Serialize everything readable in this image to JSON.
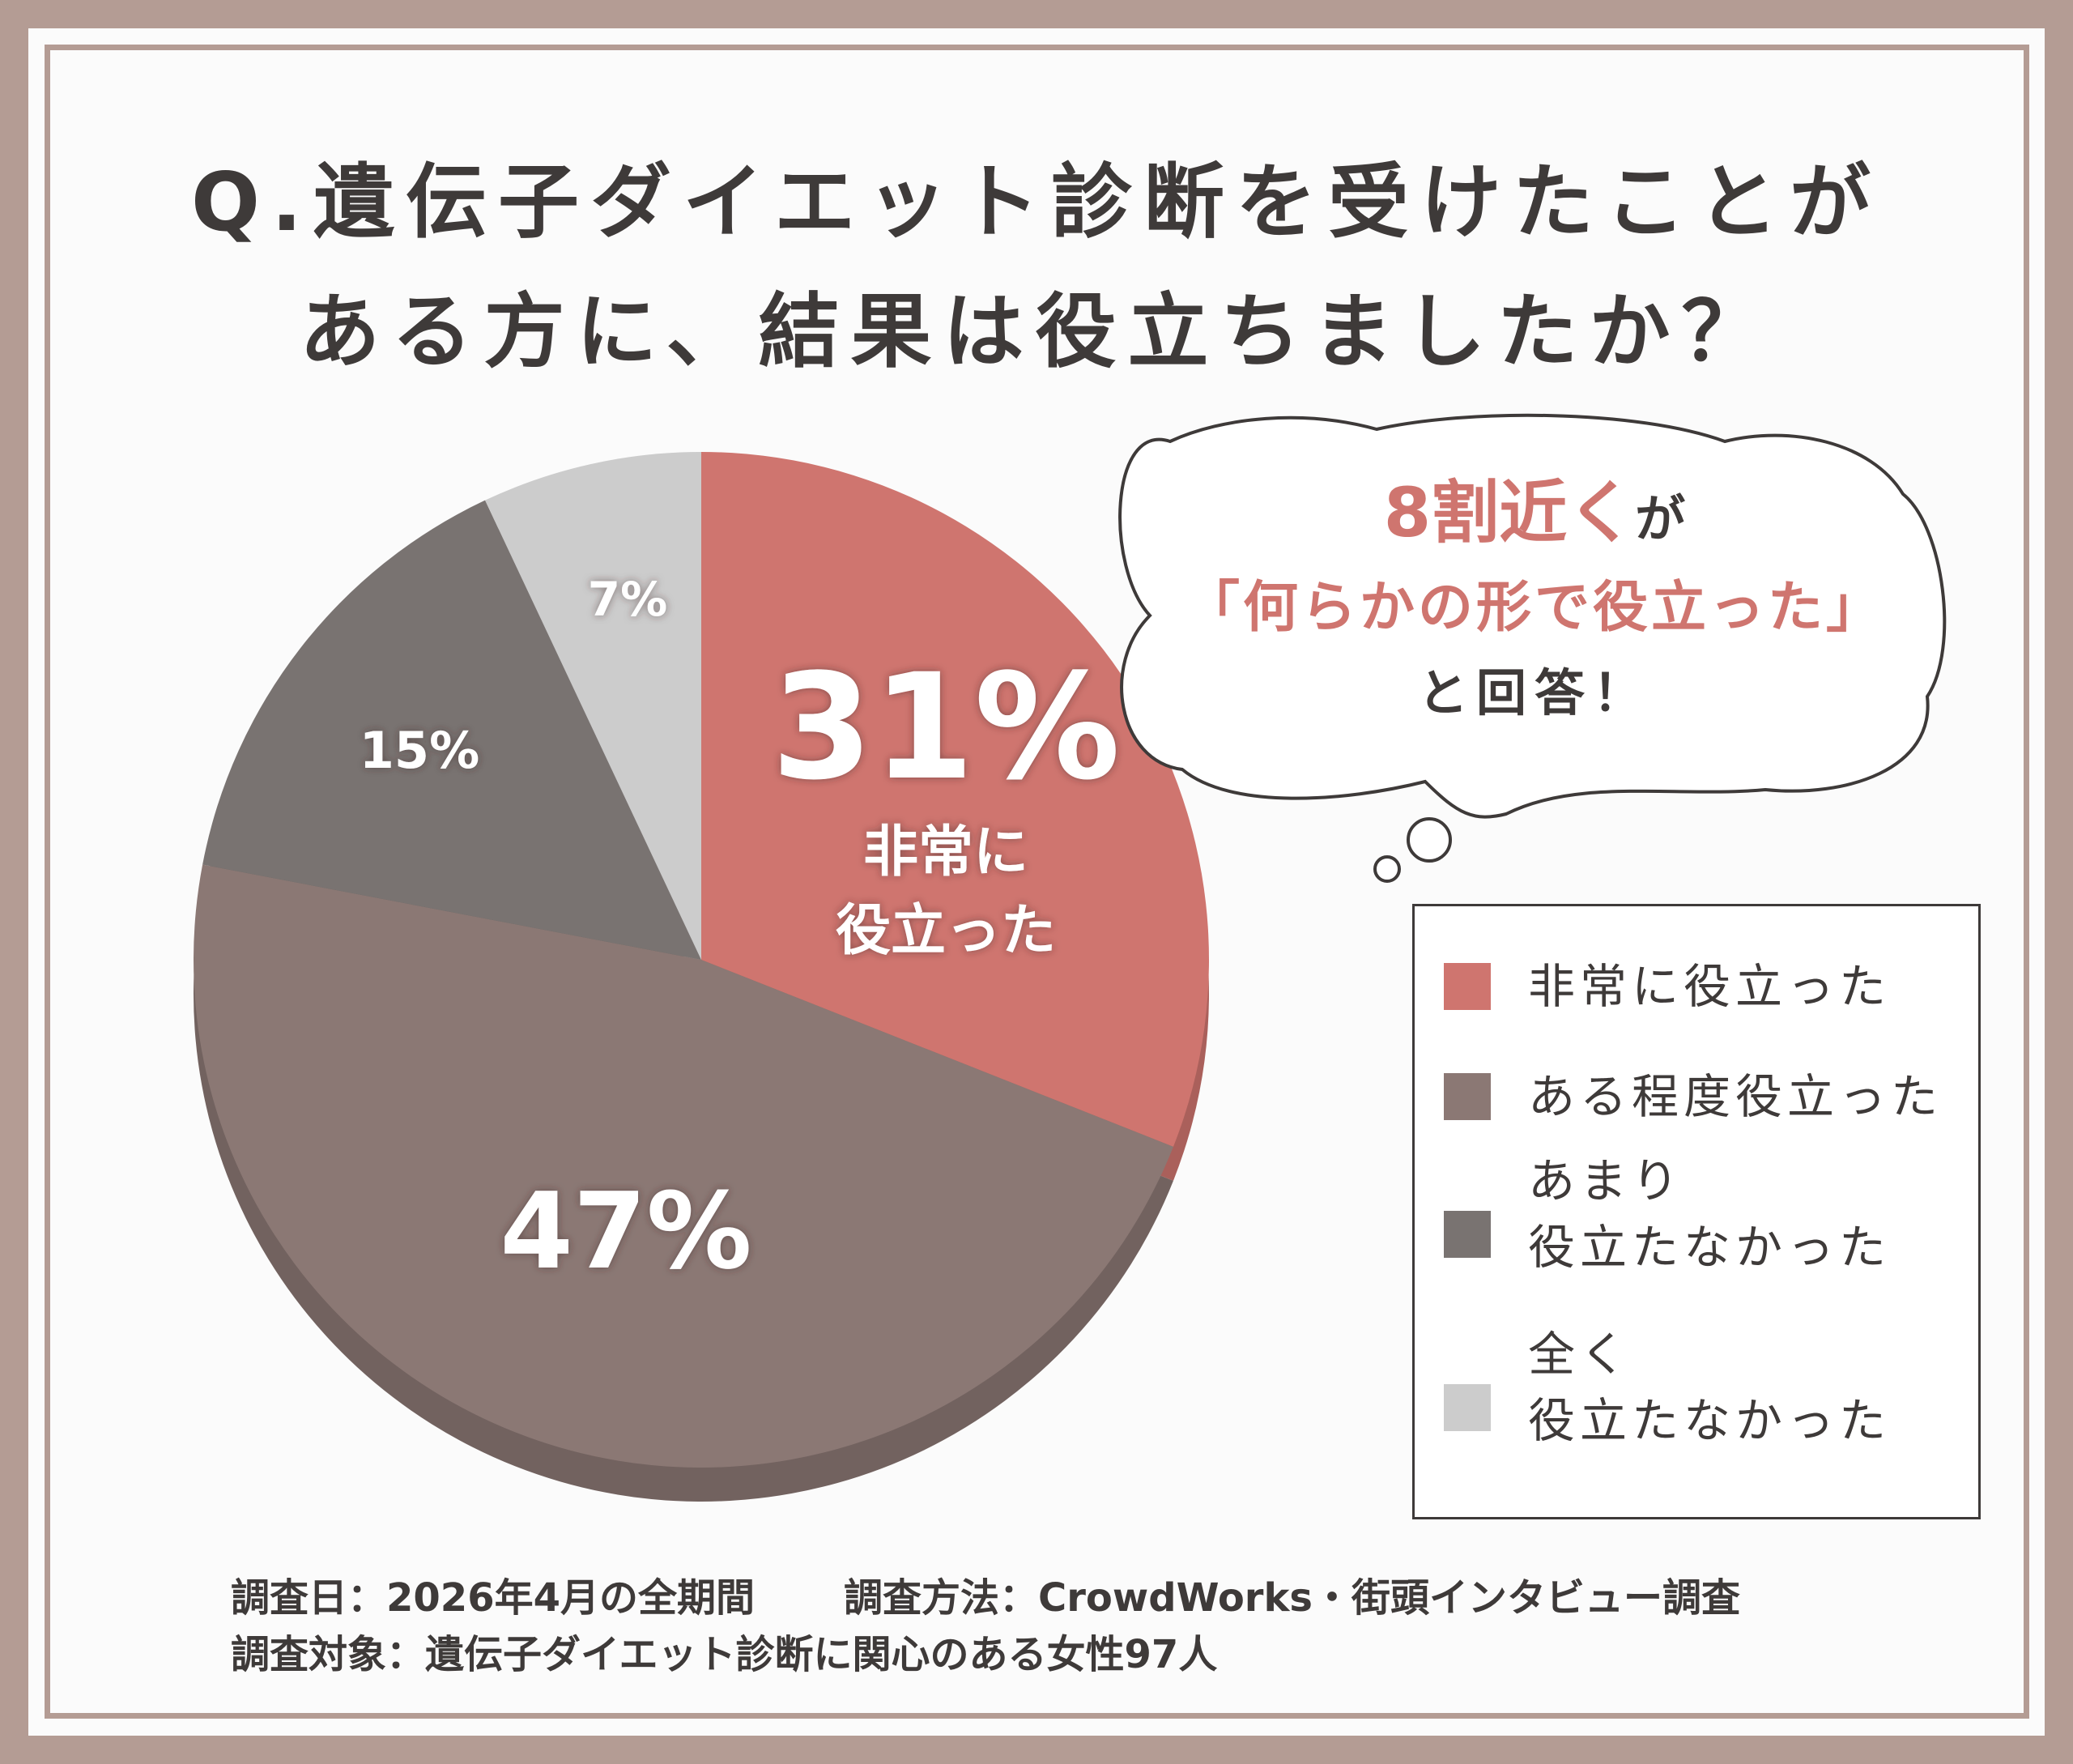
{
  "title": {
    "line1": "Q.遺伝子ダイエット診断を受けたことが",
    "line2": "ある方に、結果は役立ちましたか？"
  },
  "callout": {
    "line1_main": "8割近く",
    "line1_suffix": "が",
    "line2": "「何らかの形で役立った」",
    "line3": "と回答！"
  },
  "chart_data": {
    "type": "pie",
    "title": "Q.遺伝子ダイエット診断を受けたことがある方に、結果は役立ちましたか？",
    "categories": [
      "非常に役立った",
      "ある程度役立った",
      "あまり役立たなかった",
      "全く役立たなかった"
    ],
    "values": [
      31,
      47,
      15,
      7
    ],
    "value_labels": [
      "31%",
      "47%",
      "15%",
      "7%"
    ],
    "slice_annotations": [
      "非常に役立った",
      "",
      "",
      ""
    ],
    "colors": [
      "#cf756f",
      "#8b7874",
      "#797371",
      "#cccccc"
    ],
    "legend_position": "right"
  },
  "legend": {
    "items": [
      {
        "label": "非常に役立った",
        "color": "#cf756f"
      },
      {
        "label": "ある程度役立った",
        "color": "#8b7874"
      },
      {
        "label": "あまり\n役立たなかった",
        "color": "#797371"
      },
      {
        "label": "全く\n役立たなかった",
        "color": "#cccccc"
      }
    ]
  },
  "footer": {
    "date": "調査日：2026年4月の全期間",
    "method": "調査方法：CrowdWorks・街頭インタビュー調査",
    "target": "調査対象：遺伝子ダイエット診断に関心のある女性97人"
  }
}
